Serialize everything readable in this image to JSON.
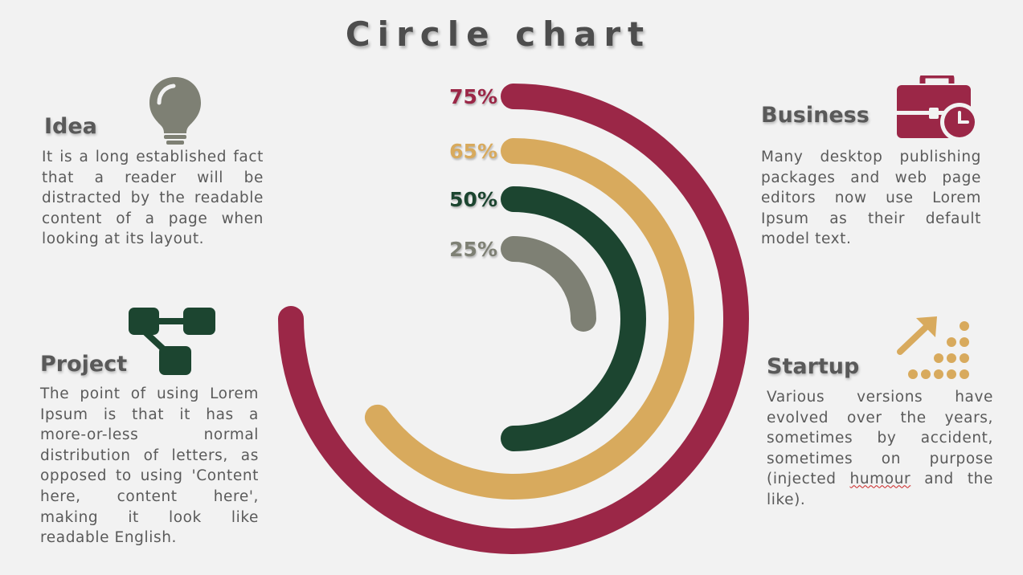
{
  "title": "Circle chart",
  "colors": {
    "maroon": "#9b2747",
    "gold": "#d8aa5d",
    "green": "#1c4530",
    "gray": "#7e8074",
    "background": "#f2f2f2"
  },
  "sections": {
    "idea": {
      "heading": "Idea",
      "icon": "lightbulb-icon",
      "text": "It is a long established fact that a reader will be distracted by the readable content of a page when looking at its layout."
    },
    "business": {
      "heading": "Business",
      "icon": "briefcase-clock-icon",
      "text": "Many desktop publishing packages and web page editors now use Lorem Ipsum as their default model text."
    },
    "project": {
      "heading": "Project",
      "icon": "flowchart-icon",
      "text": "The point of using Lorem Ipsum is that it has a more-or-less normal distribution of letters, as opposed to using 'Content here, content here', making it look like readable English."
    },
    "startup": {
      "heading": "Startup",
      "icon": "growth-arrow-icon",
      "text_before": "Various versions have evolved over the years, sometimes by accident, sometimes on purpose (injected ",
      "text_marked": "humour",
      "text_after": " and the like)."
    }
  },
  "chart_data": {
    "type": "radial-bar",
    "start": "top",
    "direction": "clockwise",
    "series": [
      {
        "label": "75%",
        "value": 75,
        "color": "#9b2747"
      },
      {
        "label": "65%",
        "value": 65,
        "color": "#d8aa5d"
      },
      {
        "label": "50%",
        "value": 50,
        "color": "#1c4530"
      },
      {
        "label": "25%",
        "value": 25,
        "color": "#7e8074"
      }
    ]
  }
}
